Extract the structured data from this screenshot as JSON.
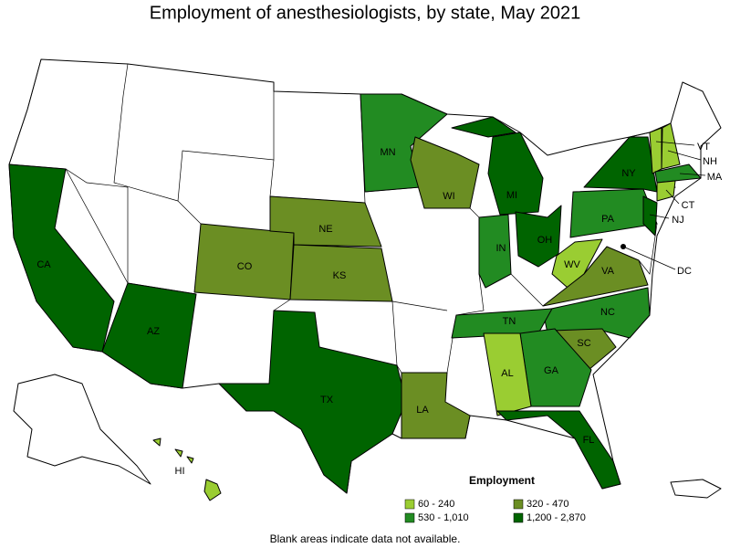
{
  "title": "Employment of anesthesiologists, by state, May 2021",
  "states": [
    {
      "label": "CA",
      "color": "#006400"
    },
    {
      "label": "AZ",
      "color": "#006400"
    },
    {
      "label": "TX",
      "color": "#006400"
    },
    {
      "label": "CO",
      "color": "#6b8e23"
    },
    {
      "label": "NE",
      "color": "#6b8e23"
    },
    {
      "label": "KS",
      "color": "#6b8e23"
    },
    {
      "label": "MN",
      "color": "#228b22"
    },
    {
      "label": "WI",
      "color": "#6b8e23"
    },
    {
      "label": "LA",
      "color": "#6b8e23"
    },
    {
      "label": "MI",
      "color": "#006400"
    },
    {
      "label": "IN",
      "color": "#228b22"
    },
    {
      "label": "OH",
      "color": "#006400"
    },
    {
      "label": "PA",
      "color": "#228b22"
    },
    {
      "label": "NY",
      "color": "#006400"
    },
    {
      "label": "NJ",
      "color": "#006400"
    },
    {
      "label": "VT",
      "color": "#9acd32"
    },
    {
      "label": "NH",
      "color": "#9acd32"
    },
    {
      "label": "MA",
      "color": "#228b22"
    },
    {
      "label": "CT",
      "color": "#9acd32"
    },
    {
      "label": "WV",
      "color": "#9acd32"
    },
    {
      "label": "VA",
      "color": "#6b8e23"
    },
    {
      "label": "NC",
      "color": "#228b22"
    },
    {
      "label": "TN",
      "color": "#228b22"
    },
    {
      "label": "SC",
      "color": "#6b8e23"
    },
    {
      "label": "GA",
      "color": "#228b22"
    },
    {
      "label": "AL",
      "color": "#9acd32"
    },
    {
      "label": "FL",
      "color": "#006400"
    },
    {
      "label": "HI",
      "color": "#9acd32"
    },
    {
      "label": "DC",
      "color": "#000000"
    }
  ],
  "legend": {
    "title": "Employment",
    "items": [
      {
        "label": "60 - 240",
        "color": "#9acd32"
      },
      {
        "label": "320 - 470",
        "color": "#6b8e23"
      },
      {
        "label": "530 - 1,010",
        "color": "#228b22"
      },
      {
        "label": "1,200 - 2,870",
        "color": "#006400"
      }
    ]
  },
  "note": "Blank areas indicate data not available."
}
